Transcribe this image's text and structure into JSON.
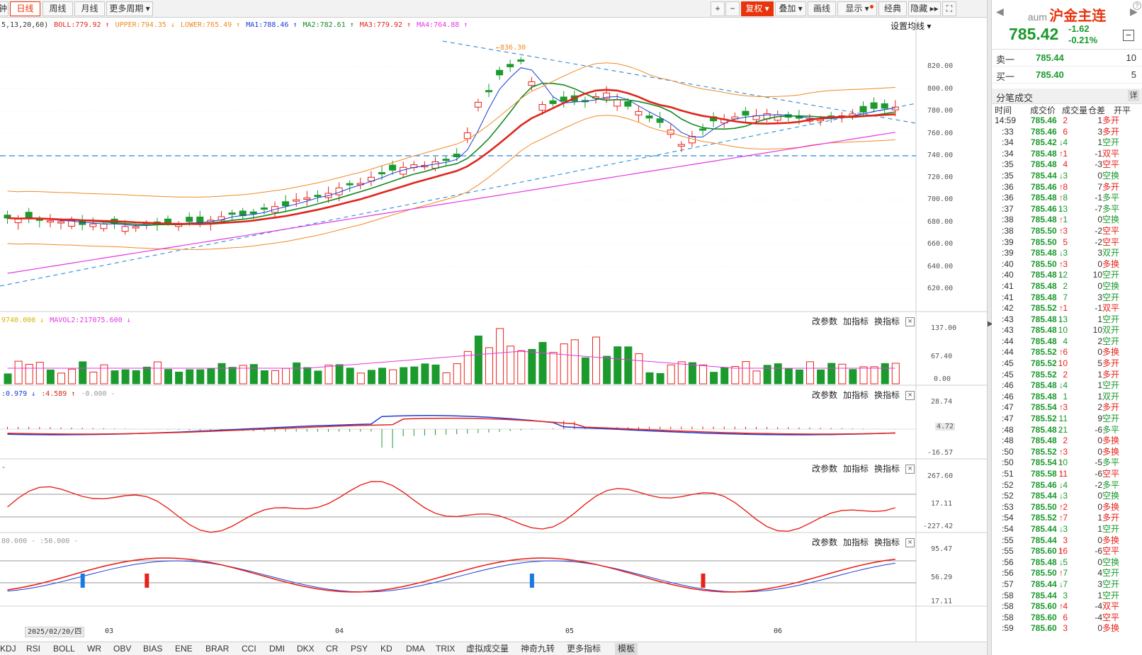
{
  "toolbar": {
    "periods": [
      {
        "label": "钟",
        "active": false
      },
      {
        "label": "日线",
        "active": true
      },
      {
        "label": "周线",
        "active": false
      },
      {
        "label": "月线",
        "active": false
      },
      {
        "label": "更多周期 ▾",
        "active": false
      }
    ],
    "right_tools": {
      "zoom_in": "+",
      "zoom_out": "−",
      "adjust": "复权 ▾",
      "overlay": "叠加 ▾",
      "draw": "画线",
      "display": "显示 ▾",
      "classic": "经典",
      "hide": "隐藏 ▸▸",
      "fullscreen": "⛶"
    }
  },
  "main_chart": {
    "legend": [
      {
        "text": "5,13,20,60)",
        "color": "#333333"
      },
      {
        "text": "BOLL:779.92 ↑",
        "color": "#e0251b"
      },
      {
        "text": "UPPER:794.35 ↓",
        "color": "#f08a24"
      },
      {
        "text": "LOWER:765.49 ↑",
        "color": "#f08a24"
      },
      {
        "text": "MA1:788.46 ↑",
        "color": "#1a3cd6"
      },
      {
        "text": "MA2:782.61 ↑",
        "color": "#128a23"
      },
      {
        "text": "MA3:779.92 ↑",
        "color": "#e0251b"
      },
      {
        "text": "MA4:764.88 ↑",
        "color": "#e438e4"
      }
    ],
    "ma_setting": "设置均线 ▾",
    "y_labels": [
      "820.00",
      "800.00",
      "780.00",
      "760.00",
      "740.00",
      "720.00",
      "700.00",
      "680.00",
      "660.00",
      "640.00",
      "620.00"
    ],
    "high_marker": "←836.30"
  },
  "volume_panel": {
    "legend": [
      {
        "text": "9740.000 ↓",
        "color": "#d8b400"
      },
      {
        "text": "MAVOL2:217075.600 ↓",
        "color": "#e438e4"
      }
    ],
    "y_labels": [
      "137.00",
      "67.40",
      "0.00"
    ]
  },
  "macd_panel": {
    "legend": [
      {
        "text": ":0.979 ↓",
        "color": "#1a3cd6"
      },
      {
        "text": ":4.589 ↑",
        "color": "#e0251b"
      },
      {
        "text": "·0.000 -",
        "color": "#999999"
      }
    ],
    "y_labels": [
      "28.74",
      "4.72",
      "-16.57"
    ]
  },
  "cci_panel": {
    "legend": [
      {
        "text": "-",
        "color": "#333333"
      }
    ],
    "y_labels": [
      "267.60",
      "17.11",
      "-227.42"
    ]
  },
  "kdj_panel": {
    "legend": [
      {
        "text": "80.000 - :50.000 -",
        "color": "#999999"
      }
    ],
    "y_labels": [
      "95.47",
      "56.29",
      "17.11"
    ]
  },
  "panel_actions": {
    "params": "改参数",
    "add": "加指标",
    "switch": "换指标",
    "close": "×"
  },
  "x_axis": {
    "current_date": "2025/02/20/四",
    "months": [
      "03",
      "04",
      "05",
      "06"
    ]
  },
  "bottom_tabs": [
    "KDJ",
    "RSI",
    "BOLL",
    "WR",
    "OBV",
    "BIAS",
    "ENE",
    "BRAR",
    "CCI",
    "DMI",
    "DKX",
    "CR",
    "PSY",
    "KD",
    "DMA",
    "TRIX",
    "虚拟成交量",
    "神奇九转",
    "更多指标",
    "模板"
  ],
  "active_tab": "模板",
  "side_panel": {
    "code": "aum",
    "name": "沪金主连",
    "price": "785.42",
    "change": "-1.62",
    "change_pct": "-0.21%",
    "sell1": {
      "label": "卖一",
      "price": "785.44",
      "vol": "10"
    },
    "buy1": {
      "label": "买一",
      "price": "785.40",
      "vol": "5"
    },
    "trades_title": "分笔成交",
    "trades_detail": "详",
    "columns": [
      "时间",
      "成交价",
      "成交量",
      "仓差",
      "开平"
    ],
    "trades": [
      {
        "t": "14:59",
        "p": "785.46",
        "a": "",
        "v": "2",
        "d": "1",
        "k": "多开",
        "c": "r"
      },
      {
        "t": ":33",
        "p": "785.46",
        "a": "",
        "v": "6",
        "d": "3",
        "k": "多开",
        "c": "r"
      },
      {
        "t": ":34",
        "p": "785.42",
        "a": "↓",
        "v": "4",
        "d": "1",
        "k": "空开",
        "c": "g"
      },
      {
        "t": ":34",
        "p": "785.48",
        "a": "↑",
        "v": "1",
        "d": "-1",
        "k": "双平",
        "c": "r"
      },
      {
        "t": ":35",
        "p": "785.48",
        "a": "",
        "v": "4",
        "d": "-3",
        "k": "空平",
        "c": "r"
      },
      {
        "t": ":35",
        "p": "785.44",
        "a": "↓",
        "v": "3",
        "d": "0",
        "k": "空换",
        "c": "g"
      },
      {
        "t": ":36",
        "p": "785.46",
        "a": "↑",
        "v": "8",
        "d": "7",
        "k": "多开",
        "c": "r"
      },
      {
        "t": ":36",
        "p": "785.48",
        "a": "↑",
        "v": "8",
        "d": "-1",
        "k": "多平",
        "c": "g"
      },
      {
        "t": ":37",
        "p": "785.46",
        "a": "↓",
        "v": "13",
        "d": "-7",
        "k": "多平",
        "c": "g"
      },
      {
        "t": ":38",
        "p": "785.48",
        "a": "↑",
        "v": "1",
        "d": "0",
        "k": "空换",
        "c": "g"
      },
      {
        "t": ":38",
        "p": "785.50",
        "a": "↑",
        "v": "3",
        "d": "-2",
        "k": "空平",
        "c": "r"
      },
      {
        "t": ":39",
        "p": "785.50",
        "a": "",
        "v": "5",
        "d": "-2",
        "k": "空平",
        "c": "r"
      },
      {
        "t": ":39",
        "p": "785.48",
        "a": "↓",
        "v": "3",
        "d": "3",
        "k": "双开",
        "c": "g"
      },
      {
        "t": ":40",
        "p": "785.50",
        "a": "↑",
        "v": "3",
        "d": "0",
        "k": "多换",
        "c": "r"
      },
      {
        "t": ":40",
        "p": "785.48",
        "a": "↓",
        "v": "12",
        "d": "10",
        "k": "空开",
        "c": "g"
      },
      {
        "t": ":41",
        "p": "785.48",
        "a": "",
        "v": "2",
        "d": "0",
        "k": "空换",
        "c": "g"
      },
      {
        "t": ":41",
        "p": "785.48",
        "a": "",
        "v": "7",
        "d": "3",
        "k": "空开",
        "c": "g"
      },
      {
        "t": ":42",
        "p": "785.52",
        "a": "↑",
        "v": "1",
        "d": "-1",
        "k": "双平",
        "c": "r"
      },
      {
        "t": ":43",
        "p": "785.48",
        "a": "↓",
        "v": "13",
        "d": "1",
        "k": "空开",
        "c": "g"
      },
      {
        "t": ":43",
        "p": "785.48",
        "a": "",
        "v": "10",
        "d": "10",
        "k": "双开",
        "c": "g"
      },
      {
        "t": ":44",
        "p": "785.48",
        "a": "",
        "v": "4",
        "d": "2",
        "k": "空开",
        "c": "g"
      },
      {
        "t": ":44",
        "p": "785.52",
        "a": "↑",
        "v": "6",
        "d": "0",
        "k": "多换",
        "c": "r"
      },
      {
        "t": ":45",
        "p": "785.52",
        "a": "",
        "v": "10",
        "d": "5",
        "k": "多开",
        "c": "r"
      },
      {
        "t": ":45",
        "p": "785.52",
        "a": "",
        "v": "2",
        "d": "1",
        "k": "多开",
        "c": "r"
      },
      {
        "t": ":46",
        "p": "785.48",
        "a": "↓",
        "v": "4",
        "d": "1",
        "k": "空开",
        "c": "g"
      },
      {
        "t": ":46",
        "p": "785.48",
        "a": "",
        "v": "1",
        "d": "1",
        "k": "双开",
        "c": "g"
      },
      {
        "t": ":47",
        "p": "785.54",
        "a": "↑",
        "v": "3",
        "d": "2",
        "k": "多开",
        "c": "r"
      },
      {
        "t": ":47",
        "p": "785.52",
        "a": "↓",
        "v": "11",
        "d": "9",
        "k": "空开",
        "c": "g"
      },
      {
        "t": ":48",
        "p": "785.48",
        "a": "↓",
        "v": "21",
        "d": "-6",
        "k": "多平",
        "c": "g"
      },
      {
        "t": ":48",
        "p": "785.48",
        "a": "",
        "v": "2",
        "d": "0",
        "k": "多换",
        "c": "r"
      },
      {
        "t": ":50",
        "p": "785.52",
        "a": "↑",
        "v": "3",
        "d": "0",
        "k": "多换",
        "c": "r"
      },
      {
        "t": ":50",
        "p": "785.54",
        "a": "↑",
        "v": "10",
        "d": "-5",
        "k": "多平",
        "c": "g"
      },
      {
        "t": ":51",
        "p": "785.58",
        "a": "↑",
        "v": "11",
        "d": "-6",
        "k": "空平",
        "c": "r"
      },
      {
        "t": ":52",
        "p": "785.46",
        "a": "↓",
        "v": "4",
        "d": "-2",
        "k": "多平",
        "c": "g"
      },
      {
        "t": ":52",
        "p": "785.44",
        "a": "↓",
        "v": "3",
        "d": "0",
        "k": "空换",
        "c": "g"
      },
      {
        "t": ":53",
        "p": "785.50",
        "a": "↑",
        "v": "2",
        "d": "0",
        "k": "多换",
        "c": "r"
      },
      {
        "t": ":54",
        "p": "785.52",
        "a": "↑",
        "v": "7",
        "d": "1",
        "k": "多开",
        "c": "r"
      },
      {
        "t": ":54",
        "p": "785.44",
        "a": "↓",
        "v": "3",
        "d": "1",
        "k": "空开",
        "c": "g"
      },
      {
        "t": ":55",
        "p": "785.44",
        "a": "",
        "v": "3",
        "d": "0",
        "k": "多换",
        "c": "r"
      },
      {
        "t": ":55",
        "p": "785.60",
        "a": "↑",
        "v": "16",
        "d": "-6",
        "k": "空平",
        "c": "r"
      },
      {
        "t": ":56",
        "p": "785.48",
        "a": "↓",
        "v": "5",
        "d": "0",
        "k": "空换",
        "c": "g"
      },
      {
        "t": ":56",
        "p": "785.50",
        "a": "↑",
        "v": "7",
        "d": "4",
        "k": "空开",
        "c": "g"
      },
      {
        "t": ":57",
        "p": "785.44",
        "a": "↓",
        "v": "7",
        "d": "3",
        "k": "空开",
        "c": "g"
      },
      {
        "t": ":58",
        "p": "785.44",
        "a": "",
        "v": "3",
        "d": "1",
        "k": "空开",
        "c": "g"
      },
      {
        "t": ":58",
        "p": "785.60",
        "a": "↑",
        "v": "4",
        "d": "-4",
        "k": "双平",
        "c": "r"
      },
      {
        "t": ":58",
        "p": "785.60",
        "a": "",
        "v": "6",
        "d": "-4",
        "k": "空平",
        "c": "r"
      },
      {
        "t": ":59",
        "p": "785.60",
        "a": "",
        "v": "3",
        "d": "0",
        "k": "多换",
        "c": "r"
      }
    ]
  },
  "colors": {
    "up": "#e8221b",
    "down": "#1b9a2d",
    "accent": "#e8340c",
    "ma1": "#1a3cd6",
    "ma2": "#128a23",
    "ma3": "#e0251b",
    "ma4": "#e438e4",
    "boll_band": "#f08a24",
    "trendline": "#2a8ad8"
  }
}
